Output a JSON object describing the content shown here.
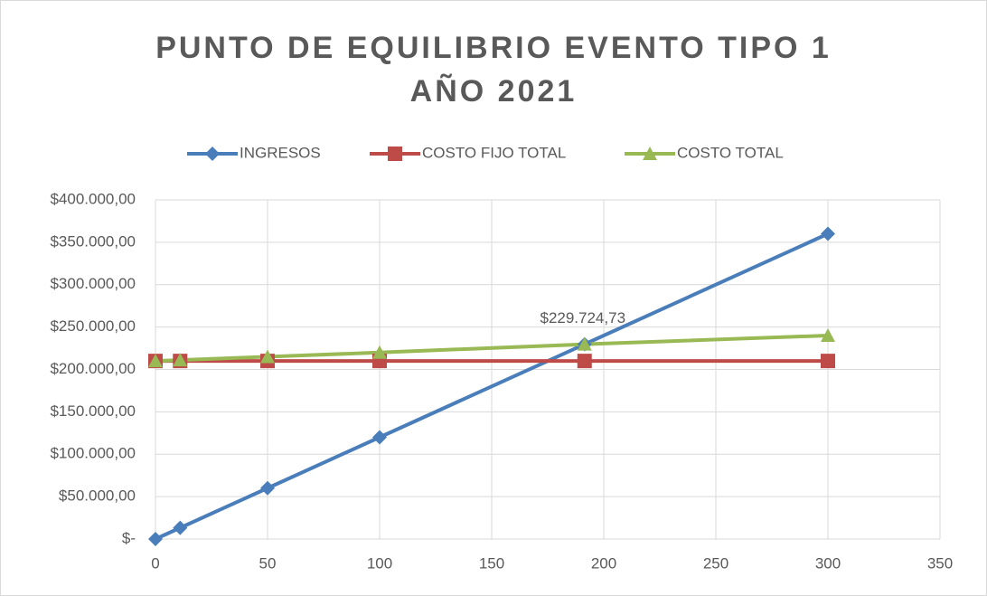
{
  "chart_data": {
    "type": "line",
    "title": [
      "PUNTO DE EQUILIBRIO EVENTO TIPO 1",
      "AÑO 2021"
    ],
    "x": [
      0,
      11,
      50,
      100,
      191.44,
      300
    ],
    "series": [
      {
        "name": "INGRESOS",
        "color": "#4a7ebb",
        "marker": "diamond",
        "values": [
          0,
          13200,
          60000,
          120000,
          229724.73,
          360000
        ]
      },
      {
        "name": "COSTO FIJO TOTAL",
        "color": "#be4b48",
        "marker": "square",
        "values": [
          210000,
          210000,
          210000,
          210000,
          210000,
          210000
        ]
      },
      {
        "name": "COSTO TOTAL",
        "color": "#98b954",
        "marker": "triangle",
        "values": [
          210000,
          211100,
          215000,
          220000,
          229724.73,
          240000
        ],
        "value_labels": [
          null,
          null,
          null,
          null,
          "$229.724,73",
          null
        ]
      }
    ],
    "xlim": [
      0,
      350
    ],
    "xticks": [
      0,
      50,
      100,
      150,
      200,
      250,
      300,
      350
    ],
    "ylim": [
      0,
      400000
    ],
    "yticks": [
      {
        "value": 0,
        "label": "$-"
      },
      {
        "value": 50000,
        "label": "$50.000,00"
      },
      {
        "value": 100000,
        "label": "$100.000,00"
      },
      {
        "value": 150000,
        "label": "$150.000,00"
      },
      {
        "value": 200000,
        "label": "$200.000,00"
      },
      {
        "value": 250000,
        "label": "$250.000,00"
      },
      {
        "value": 300000,
        "label": "$300.000,00"
      },
      {
        "value": 350000,
        "label": "$350.000,00"
      },
      {
        "value": 400000,
        "label": "$400.000,00"
      }
    ],
    "grid": true,
    "legend": "top"
  }
}
